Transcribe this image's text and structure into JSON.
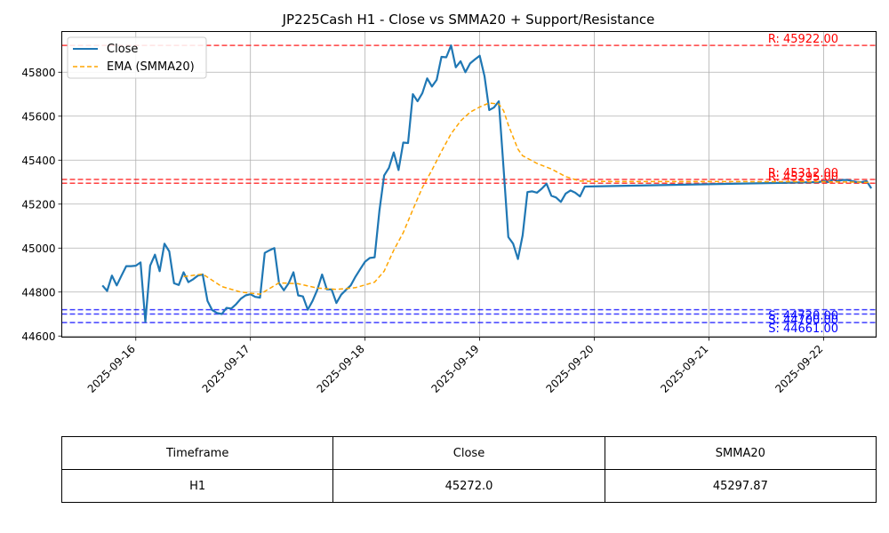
{
  "chart_data": {
    "type": "line",
    "title": "JP225Cash H1 - Close vs SMMA20 + Support/Resistance",
    "xlabel": "",
    "ylabel": "",
    "x_ticks": [
      "2025-09-16",
      "2025-09-17",
      "2025-09-18",
      "2025-09-19",
      "2025-09-20",
      "2025-09-21",
      "2025-09-22"
    ],
    "y_ticks": [
      44600,
      44800,
      45000,
      45200,
      45400,
      45600,
      45800
    ],
    "xlim": [
      "2025-09-15 08:30",
      "2025-09-22 11:00"
    ],
    "ylim": [
      44595,
      45985
    ],
    "grid": true,
    "legend_position": "top-left",
    "legend": [
      "Close",
      "EMA (SMMA20)"
    ],
    "colors": {
      "close": "#1f77b4",
      "smma": "#ffa500",
      "resistance": "#ff0000",
      "support": "#0000ff"
    },
    "series": [
      {
        "name": "Close",
        "style": "solid",
        "points": [
          [
            "2025-09-15 17:00",
            44830
          ],
          [
            "2025-09-15 18:00",
            44805
          ],
          [
            "2025-09-15 19:00",
            44875
          ],
          [
            "2025-09-15 20:00",
            44830
          ],
          [
            "2025-09-15 21:00",
            44875
          ],
          [
            "2025-09-15 22:00",
            44918
          ],
          [
            "2025-09-15 23:00",
            44918
          ],
          [
            "2025-09-16 00:00",
            44920
          ],
          [
            "2025-09-16 01:00",
            44935
          ],
          [
            "2025-09-16 02:00",
            44665
          ],
          [
            "2025-09-16 03:00",
            44920
          ],
          [
            "2025-09-16 04:00",
            44970
          ],
          [
            "2025-09-16 05:00",
            44895
          ],
          [
            "2025-09-16 06:00",
            45020
          ],
          [
            "2025-09-16 07:00",
            44985
          ],
          [
            "2025-09-16 08:00",
            44840
          ],
          [
            "2025-09-16 09:00",
            44832
          ],
          [
            "2025-09-16 10:00",
            44890
          ],
          [
            "2025-09-16 11:00",
            44845
          ],
          [
            "2025-09-16 12:00",
            44858
          ],
          [
            "2025-09-16 13:00",
            44875
          ],
          [
            "2025-09-16 14:00",
            44880
          ],
          [
            "2025-09-16 15:00",
            44760
          ],
          [
            "2025-09-16 16:00",
            44718
          ],
          [
            "2025-09-16 17:00",
            44705
          ],
          [
            "2025-09-16 18:00",
            44700
          ],
          [
            "2025-09-16 19:00",
            44728
          ],
          [
            "2025-09-16 20:00",
            44725
          ],
          [
            "2025-09-16 21:00",
            44745
          ],
          [
            "2025-09-16 22:00",
            44770
          ],
          [
            "2025-09-16 23:00",
            44785
          ],
          [
            "2025-09-17 00:00",
            44790
          ],
          [
            "2025-09-17 01:00",
            44778
          ],
          [
            "2025-09-17 02:00",
            44775
          ],
          [
            "2025-09-17 03:00",
            44978
          ],
          [
            "2025-09-17 04:00",
            44990
          ],
          [
            "2025-09-17 05:00",
            45000
          ],
          [
            "2025-09-17 06:00",
            44840
          ],
          [
            "2025-09-17 07:00",
            44808
          ],
          [
            "2025-09-17 08:00",
            44840
          ],
          [
            "2025-09-17 09:00",
            44890
          ],
          [
            "2025-09-17 10:00",
            44785
          ],
          [
            "2025-09-17 11:00",
            44780
          ],
          [
            "2025-09-17 12:00",
            44720
          ],
          [
            "2025-09-17 13:00",
            44760
          ],
          [
            "2025-09-17 14:00",
            44810
          ],
          [
            "2025-09-17 15:00",
            44880
          ],
          [
            "2025-09-17 16:00",
            44812
          ],
          [
            "2025-09-17 17:00",
            44812
          ],
          [
            "2025-09-17 18:00",
            44750
          ],
          [
            "2025-09-17 19:00",
            44788
          ],
          [
            "2025-09-17 20:00",
            44810
          ],
          [
            "2025-09-17 21:00",
            44830
          ],
          [
            "2025-09-17 22:00",
            44870
          ],
          [
            "2025-09-17 23:00",
            44905
          ],
          [
            "2025-09-18 00:00",
            44938
          ],
          [
            "2025-09-18 01:00",
            44955
          ],
          [
            "2025-09-18 02:00",
            44958
          ],
          [
            "2025-09-18 03:00",
            45170
          ],
          [
            "2025-09-18 04:00",
            45330
          ],
          [
            "2025-09-18 05:00",
            45365
          ],
          [
            "2025-09-18 06:00",
            45435
          ],
          [
            "2025-09-18 07:00",
            45355
          ],
          [
            "2025-09-18 08:00",
            45480
          ],
          [
            "2025-09-18 09:00",
            45478
          ],
          [
            "2025-09-18 10:00",
            45700
          ],
          [
            "2025-09-18 11:00",
            45668
          ],
          [
            "2025-09-18 12:00",
            45705
          ],
          [
            "2025-09-18 13:00",
            45772
          ],
          [
            "2025-09-18 14:00",
            45735
          ],
          [
            "2025-09-18 15:00",
            45765
          ],
          [
            "2025-09-18 16:00",
            45870
          ],
          [
            "2025-09-18 17:00",
            45868
          ],
          [
            "2025-09-18 18:00",
            45922
          ],
          [
            "2025-09-18 19:00",
            45822
          ],
          [
            "2025-09-18 20:00",
            45850
          ],
          [
            "2025-09-18 21:00",
            45800
          ],
          [
            "2025-09-18 22:00",
            45840
          ],
          [
            "2025-09-18 23:00",
            45858
          ],
          [
            "2025-09-19 00:00",
            45875
          ],
          [
            "2025-09-19 01:00",
            45782
          ],
          [
            "2025-09-19 02:00",
            45628
          ],
          [
            "2025-09-19 03:00",
            45640
          ],
          [
            "2025-09-19 04:00",
            45668
          ],
          [
            "2025-09-19 05:00",
            45360
          ],
          [
            "2025-09-19 06:00",
            45050
          ],
          [
            "2025-09-19 07:00",
            45020
          ],
          [
            "2025-09-19 08:00",
            44950
          ],
          [
            "2025-09-19 09:00",
            45058
          ],
          [
            "2025-09-19 10:00",
            45255
          ],
          [
            "2025-09-19 11:00",
            45258
          ],
          [
            "2025-09-19 12:00",
            45252
          ],
          [
            "2025-09-19 13:00",
            45270
          ],
          [
            "2025-09-19 14:00",
            45293
          ],
          [
            "2025-09-19 15:00",
            45238
          ],
          [
            "2025-09-19 16:00",
            45230
          ],
          [
            "2025-09-19 17:00",
            45210
          ],
          [
            "2025-09-19 18:00",
            45248
          ],
          [
            "2025-09-19 19:00",
            45262
          ],
          [
            "2025-09-19 20:00",
            45252
          ],
          [
            "2025-09-19 21:00",
            45235
          ],
          [
            "2025-09-19 22:00",
            45280
          ],
          [
            "2025-09-21 23:00",
            45300
          ],
          [
            "2025-09-22 00:00",
            45305
          ],
          [
            "2025-09-22 01:00",
            45300
          ],
          [
            "2025-09-22 02:00",
            45312
          ],
          [
            "2025-09-22 03:00",
            45305
          ],
          [
            "2025-09-22 04:00",
            45310
          ],
          [
            "2025-09-22 05:00",
            45310
          ],
          [
            "2025-09-22 06:00",
            45305
          ],
          [
            "2025-09-22 07:00",
            45300
          ],
          [
            "2025-09-22 08:00",
            45300
          ],
          [
            "2025-09-22 09:00",
            45305
          ],
          [
            "2025-09-22 10:00",
            45272
          ]
        ]
      },
      {
        "name": "EMA (SMMA20)",
        "style": "dashed",
        "points": [
          [
            "2025-09-16 10:00",
            44870
          ],
          [
            "2025-09-16 14:00",
            44882
          ],
          [
            "2025-09-16 18:00",
            44825
          ],
          [
            "2025-09-16 22:00",
            44800
          ],
          [
            "2025-09-17 02:00",
            44790
          ],
          [
            "2025-09-17 06:00",
            44842
          ],
          [
            "2025-09-17 10:00",
            44838
          ],
          [
            "2025-09-17 14:00",
            44818
          ],
          [
            "2025-09-17 18:00",
            44812
          ],
          [
            "2025-09-17 22:00",
            44820
          ],
          [
            "2025-09-18 02:00",
            44845
          ],
          [
            "2025-09-18 04:00",
            44895
          ],
          [
            "2025-09-18 06:00",
            44990
          ],
          [
            "2025-09-18 08:00",
            45070
          ],
          [
            "2025-09-18 10:00",
            45175
          ],
          [
            "2025-09-18 12:00",
            45275
          ],
          [
            "2025-09-18 14:00",
            45355
          ],
          [
            "2025-09-18 16:00",
            45440
          ],
          [
            "2025-09-18 18:00",
            45520
          ],
          [
            "2025-09-18 20:00",
            45578
          ],
          [
            "2025-09-18 22:00",
            45618
          ],
          [
            "2025-09-19 00:00",
            45642
          ],
          [
            "2025-09-19 02:00",
            45660
          ],
          [
            "2025-09-19 04:00",
            45655
          ],
          [
            "2025-09-19 05:00",
            45625
          ],
          [
            "2025-09-19 06:00",
            45560
          ],
          [
            "2025-09-19 08:00",
            45450
          ],
          [
            "2025-09-19 09:00",
            45420
          ],
          [
            "2025-09-19 12:00",
            45385
          ],
          [
            "2025-09-19 15:00",
            45360
          ],
          [
            "2025-09-19 18:00",
            45325
          ],
          [
            "2025-09-19 21:00",
            45305
          ],
          [
            "2025-09-20 00:00",
            45303
          ],
          [
            "2025-09-21 23:00",
            45302
          ],
          [
            "2025-09-22 06:00",
            45300
          ],
          [
            "2025-09-22 10:00",
            45298
          ]
        ]
      }
    ],
    "resistance_levels": [
      45922.0,
      45312.0,
      45295.0
    ],
    "support_levels": [
      44720.0,
      44700.0,
      44661.0
    ],
    "level_labels": {
      "resistance": [
        "R: 45922.00",
        "R: 45312.00",
        "R: 45295.00"
      ],
      "support": [
        "S: 44720.00",
        "S: 44700.00",
        "S: 44661.00"
      ]
    }
  },
  "table": {
    "headers": [
      "Timeframe",
      "Close",
      "SMMA20"
    ],
    "rows": [
      [
        "H1",
        "45272.0",
        "45297.87"
      ]
    ]
  }
}
